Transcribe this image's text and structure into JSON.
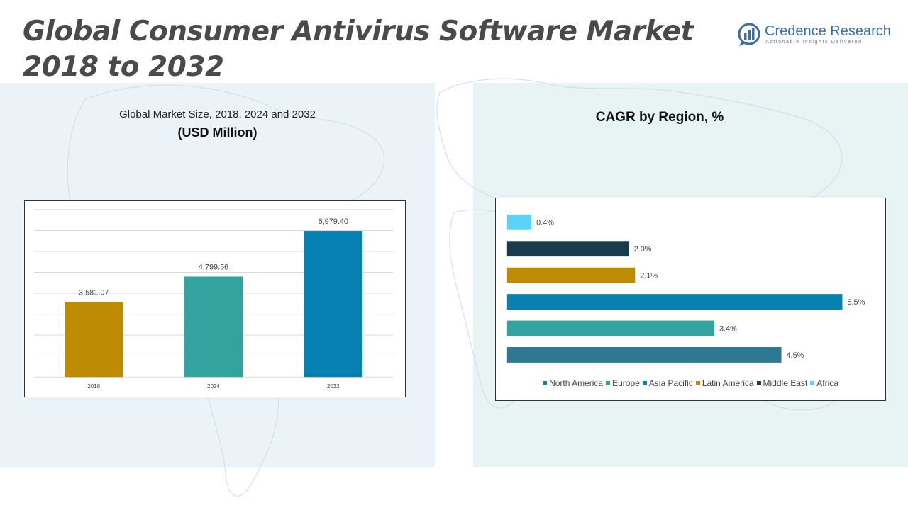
{
  "header": {
    "title_line1": "Global Consumer Antivirus Software Market",
    "title_line2": "2018 to 2032"
  },
  "logo": {
    "name": "Credence Research",
    "tagline": "Actionable Insights Delivered",
    "color": "#3a6ea5"
  },
  "left_panel": {
    "subtitle": "Global Market Size, 2018, 2024 and 2032",
    "unit_label": "(USD Million)"
  },
  "right_panel": {
    "title": "CAGR by Region, %"
  },
  "colors": {
    "left_panel_bg": "#ecf3f8",
    "right_panel_bg": "#e7f4f3",
    "title_text": "#4a4a4a"
  },
  "chart_data": [
    {
      "type": "bar",
      "categories": [
        "2018",
        "2024",
        "2032"
      ],
      "values": [
        3581.07,
        4799.56,
        6979.4
      ],
      "value_labels": [
        "3,581.07",
        "4,799.56",
        "6,979.40"
      ],
      "colors": [
        "#be8c04",
        "#33a39f",
        "#0781b2"
      ],
      "ylim": [
        0,
        8000
      ],
      "grid": true
    },
    {
      "type": "bar",
      "orientation": "horizontal",
      "categories": [
        "Africa",
        "Middle East",
        "Latin America",
        "Asia Pacific",
        "Europe",
        "North America"
      ],
      "values": [
        0.4,
        2.0,
        2.1,
        5.5,
        3.4,
        4.5
      ],
      "value_labels": [
        "0.4%",
        "2.0%",
        "2.1%",
        "5.5%",
        "3.4%",
        "4.5%"
      ],
      "colors": [
        "#5dd2f8",
        "#1b3a4b",
        "#be8c04",
        "#0781b2",
        "#33a39f",
        "#2f7893"
      ],
      "xlim": [
        0,
        5.5
      ],
      "legend": [
        {
          "label": "North America",
          "color": "#2f7893"
        },
        {
          "label": "Europe",
          "color": "#33a39f"
        },
        {
          "label": "Asia Pacific",
          "color": "#0781b2"
        },
        {
          "label": "Latin America",
          "color": "#be8c04"
        },
        {
          "label": "Middle East",
          "color": "#1b3a4b"
        },
        {
          "label": "Africa",
          "color": "#5dd2f8"
        }
      ],
      "legend_position": "bottom",
      "grid": false
    }
  ]
}
